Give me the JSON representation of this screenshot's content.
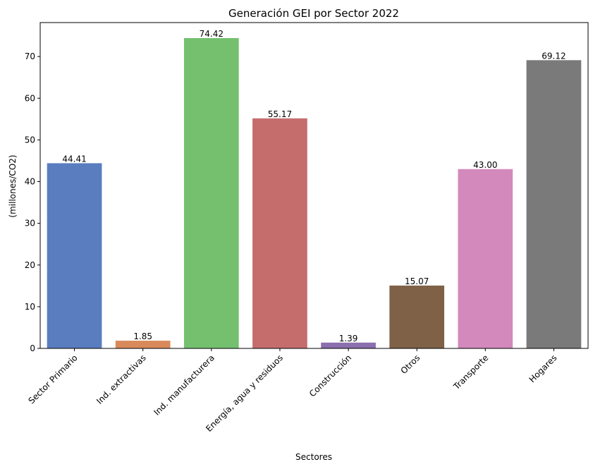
{
  "chart_data": {
    "type": "bar",
    "title": "Generación GEI por Sector 2022",
    "xlabel": "Sectores",
    "ylabel": "(millones/CO2)",
    "categories": [
      "Sector Primario",
      "Ind. extractivas",
      "Ind. manufacturera",
      "Energía, agua y residuos",
      "Construcción",
      "Otros",
      "Transporte",
      "Hogares"
    ],
    "values": [
      44.41,
      1.85,
      74.42,
      55.17,
      1.39,
      15.07,
      43.0,
      69.12
    ],
    "data_labels": [
      "44.41",
      "1.85",
      "74.42",
      "55.17",
      "1.39",
      "15.07",
      "43.00",
      "69.12"
    ],
    "colors": [
      "#5a7dc0",
      "#d98a5a",
      "#74c06f",
      "#c56d6d",
      "#8b6fae",
      "#7f6147",
      "#d389bb",
      "#7a7a7a"
    ],
    "ylim": [
      0,
      78.14
    ],
    "yticks": [
      0,
      10,
      20,
      30,
      40,
      50,
      60,
      70
    ],
    "grid": false,
    "legend": "none"
  }
}
